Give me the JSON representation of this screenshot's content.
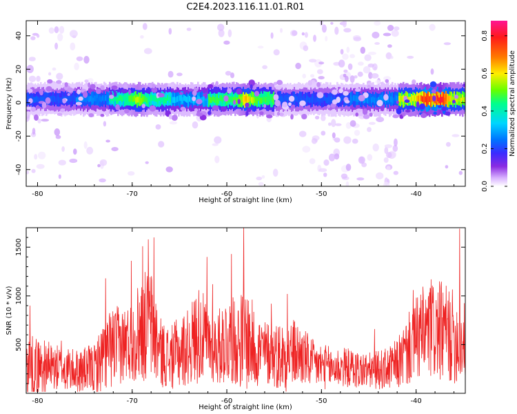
{
  "title": "C2E4.2023.116.11.01.R01",
  "colors": {
    "signal_line": "#ee2222",
    "axis": "#000000",
    "colormap": [
      "#ffffff",
      "#d9b3ff",
      "#8a2be2",
      "#3b2bff",
      "#0073ff",
      "#00d5ff",
      "#00ff8c",
      "#66ff00",
      "#ffee00",
      "#ff7a00",
      "#ff1a1a",
      "#ff1493"
    ]
  },
  "chart_data": [
    {
      "type": "heatmap",
      "title": "",
      "xlabel": "Height of straight line (km)",
      "ylabel": "Frequency (Hz)",
      "xlim": [
        -81.2,
        -34.8
      ],
      "ylim": [
        -50,
        49
      ],
      "xticks": [
        -80,
        -70,
        -60,
        -50,
        -40
      ],
      "yticks": [
        -40,
        -20,
        0,
        20,
        40
      ],
      "xtick_labels": [
        "-80",
        "-70",
        "-60",
        "-50",
        "-40"
      ],
      "ytick_labels": [
        "-40",
        "-20",
        "0",
        "20",
        "40"
      ],
      "colorbar": {
        "label": "Normalized spectral amplitude",
        "range": [
          0.0,
          0.88
        ],
        "ticks": [
          0.0,
          0.2,
          0.4,
          0.6,
          0.8
        ],
        "tick_labels": [
          "0.0",
          "0.2",
          "0.4",
          "0.6",
          "0.8"
        ]
      },
      "band": {
        "center_hz": 2,
        "half_width_hz": 5,
        "segments": [
          {
            "x": [
              -81.2,
              -76.0
            ],
            "level": 0.3
          },
          {
            "x": [
              -76.0,
              -72.5
            ],
            "level": 0.35
          },
          {
            "x": [
              -72.5,
              -66.0
            ],
            "level": 0.5
          },
          {
            "x": [
              -66.0,
              -62.0
            ],
            "level": 0.4
          },
          {
            "x": [
              -62.0,
              -55.0
            ],
            "level": 0.55
          },
          {
            "x": [
              -55.0,
              -47.0
            ],
            "level": 0.3
          },
          {
            "x": [
              -47.0,
              -42.0
            ],
            "level": 0.35
          },
          {
            "x": [
              -42.0,
              -34.8
            ],
            "level": 0.65
          }
        ],
        "peaks": [
          {
            "x": -69.5,
            "level": 0.65
          },
          {
            "x": -58.0,
            "level": 0.7
          },
          {
            "x": -39.0,
            "level": 0.85
          },
          {
            "x": -37.5,
            "level": 0.88
          }
        ]
      },
      "scatter_regions": [
        {
          "x": [
            -81.2,
            -77.0
          ],
          "density": 0.45
        },
        {
          "x": [
            -77.0,
            -73.0
          ],
          "density": 0.25
        },
        {
          "x": [
            -73.0,
            -52.0
          ],
          "density": 0.08
        },
        {
          "x": [
            -52.0,
            -42.0
          ],
          "density": 0.55
        },
        {
          "x": [
            -42.0,
            -34.8
          ],
          "density": 0.12
        }
      ]
    },
    {
      "type": "line",
      "title": "",
      "xlabel": "Height of straight line (km)",
      "ylabel": "SNR (10 * v/v)",
      "xlim": [
        -81.2,
        -34.8
      ],
      "ylim": [
        0,
        1700
      ],
      "xticks": [
        -80,
        -70,
        -60,
        -50,
        -40
      ],
      "yticks": [
        500,
        1000,
        1500
      ],
      "xtick_labels": [
        "-80",
        "-70",
        "-60",
        "-50",
        "-40"
      ],
      "ytick_labels": [
        "500",
        "1000",
        "1500"
      ],
      "series": [
        {
          "envelope": {
            "x": [
              -81.2,
              -80.0,
              -78.0,
              -76.0,
              -74.0,
              -73.0,
              -72.0,
              -71.0,
              -70.0,
              -69.0,
              -68.0,
              -67.0,
              -66.0,
              -65.0,
              -64.0,
              -63.0,
              -62.0,
              -61.0,
              -60.0,
              -59.0,
              -58.0,
              -57.0,
              -56.0,
              -55.0,
              -54.0,
              -53.0,
              -52.0,
              -51.0,
              -50.0,
              -49.0,
              -48.0,
              -47.0,
              -46.0,
              -45.0,
              -44.0,
              -43.0,
              -42.0,
              -41.0,
              -40.0,
              -39.0,
              -38.0,
              -37.0,
              -36.0,
              -35.5,
              -34.8
            ],
            "mean": [
              300,
              280,
              260,
              230,
              250,
              380,
              480,
              500,
              540,
              680,
              700,
              420,
              360,
              420,
              480,
              620,
              520,
              460,
              560,
              520,
              580,
              460,
              420,
              400,
              380,
              420,
              380,
              300,
              280,
              260,
              270,
              260,
              240,
              230,
              240,
              250,
              300,
              420,
              560,
              620,
              640,
              620,
              580,
              540,
              520
            ],
            "amplitude": [
              320,
              300,
              240,
              220,
              260,
              380,
              420,
              400,
              420,
              560,
              600,
              360,
              320,
              380,
              400,
              520,
              400,
              380,
              480,
              440,
              560,
              420,
              340,
              340,
              380,
              360,
              320,
              260,
              240,
              220,
              220,
              200,
              200,
              190,
              200,
              220,
              260,
              360,
              440,
              520,
              520,
              520,
              480,
              460,
              420
            ]
          },
          "spikes": [
            {
              "x": -80.8,
              "y": 900
            },
            {
              "x": -77.5,
              "y": 540
            },
            {
              "x": -72.8,
              "y": 1180
            },
            {
              "x": -70.1,
              "y": 1360
            },
            {
              "x": -68.9,
              "y": 1510
            },
            {
              "x": -68.3,
              "y": 1580
            },
            {
              "x": -67.7,
              "y": 1600
            },
            {
              "x": -62.1,
              "y": 1400
            },
            {
              "x": -61.5,
              "y": 1120
            },
            {
              "x": -59.5,
              "y": 1430
            },
            {
              "x": -58.2,
              "y": 1700
            },
            {
              "x": -55.3,
              "y": 920
            },
            {
              "x": -53.6,
              "y": 1020
            },
            {
              "x": -44.4,
              "y": 660
            },
            {
              "x": -40.3,
              "y": 1060
            },
            {
              "x": -38.4,
              "y": 1170
            },
            {
              "x": -35.4,
              "y": 1690
            }
          ]
        }
      ]
    }
  ]
}
